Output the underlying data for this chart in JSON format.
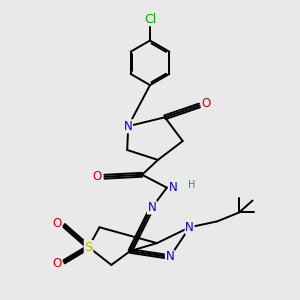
{
  "background_color": "#e9e9e9",
  "bond_color": "#000000",
  "bond_width": 1.4,
  "atom_colors": {
    "C": "#000000",
    "N": "#0000cc",
    "O": "#cc0000",
    "S": "#bbbb00",
    "Cl": "#00aa00",
    "H": "#557777"
  },
  "font_size": 7.5,
  "figsize": [
    3.0,
    3.0
  ],
  "dpi": 100
}
